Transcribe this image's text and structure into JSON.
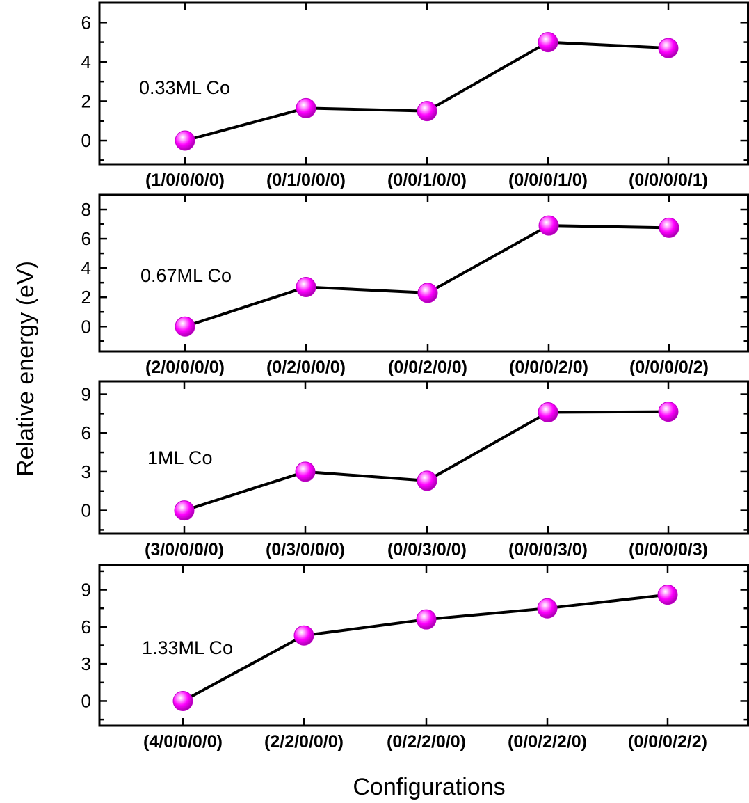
{
  "figure": {
    "ylabel": "Relative energy (eV)",
    "xlabel": "Configurations"
  },
  "colors": {
    "marker": "#ff00ff",
    "line": "#000000"
  },
  "chart_data": [
    {
      "type": "line",
      "annotation": "0.33ML  Co",
      "categories": [
        "(1/0/0/0/0)",
        "(0/1/0/0/0)",
        "(0/0/1/0/0)",
        "(0/0/0/1/0)",
        "(0/0/0/0/1)"
      ],
      "values": [
        0,
        1.65,
        1.5,
        5.0,
        4.7
      ],
      "ylim": [
        -1.2,
        7
      ],
      "yticks": [
        0,
        2,
        4,
        6
      ]
    },
    {
      "type": "line",
      "annotation": "0.67ML  Co",
      "categories": [
        "(2/0/0/0/0)",
        "(0/2/0/0/0)",
        "(0/0/2/0/0)",
        "(0/0/0/2/0)",
        "(0/0/0/0/2)"
      ],
      "values": [
        0,
        2.7,
        2.3,
        6.9,
        6.75
      ],
      "ylim": [
        -1.7,
        9
      ],
      "yticks": [
        0,
        2,
        4,
        6,
        8
      ]
    },
    {
      "type": "line",
      "annotation": "1ML  Co",
      "categories": [
        "(3/0/0/0/0)",
        "(0/3/0/0/0)",
        "(0/0/3/0/0)",
        "(0/0/0/3/0)",
        "(0/0/0/0/3)"
      ],
      "values": [
        0,
        3.0,
        2.3,
        7.6,
        7.65
      ],
      "ylim": [
        -1.8,
        10
      ],
      "yticks": [
        0,
        3,
        6,
        9
      ]
    },
    {
      "type": "line",
      "annotation": "1.33ML  Co",
      "categories": [
        "(4/0/0/0/0)",
        "(2/2/0/0/0)",
        "(0/2/2/0/0)",
        "(0/0/2/2/0)",
        "(0/0/0/2/2)"
      ],
      "values": [
        0,
        5.3,
        6.6,
        7.5,
        8.6
      ],
      "ylim": [
        -2,
        11
      ],
      "yticks": [
        0,
        3,
        6,
        9
      ]
    }
  ]
}
